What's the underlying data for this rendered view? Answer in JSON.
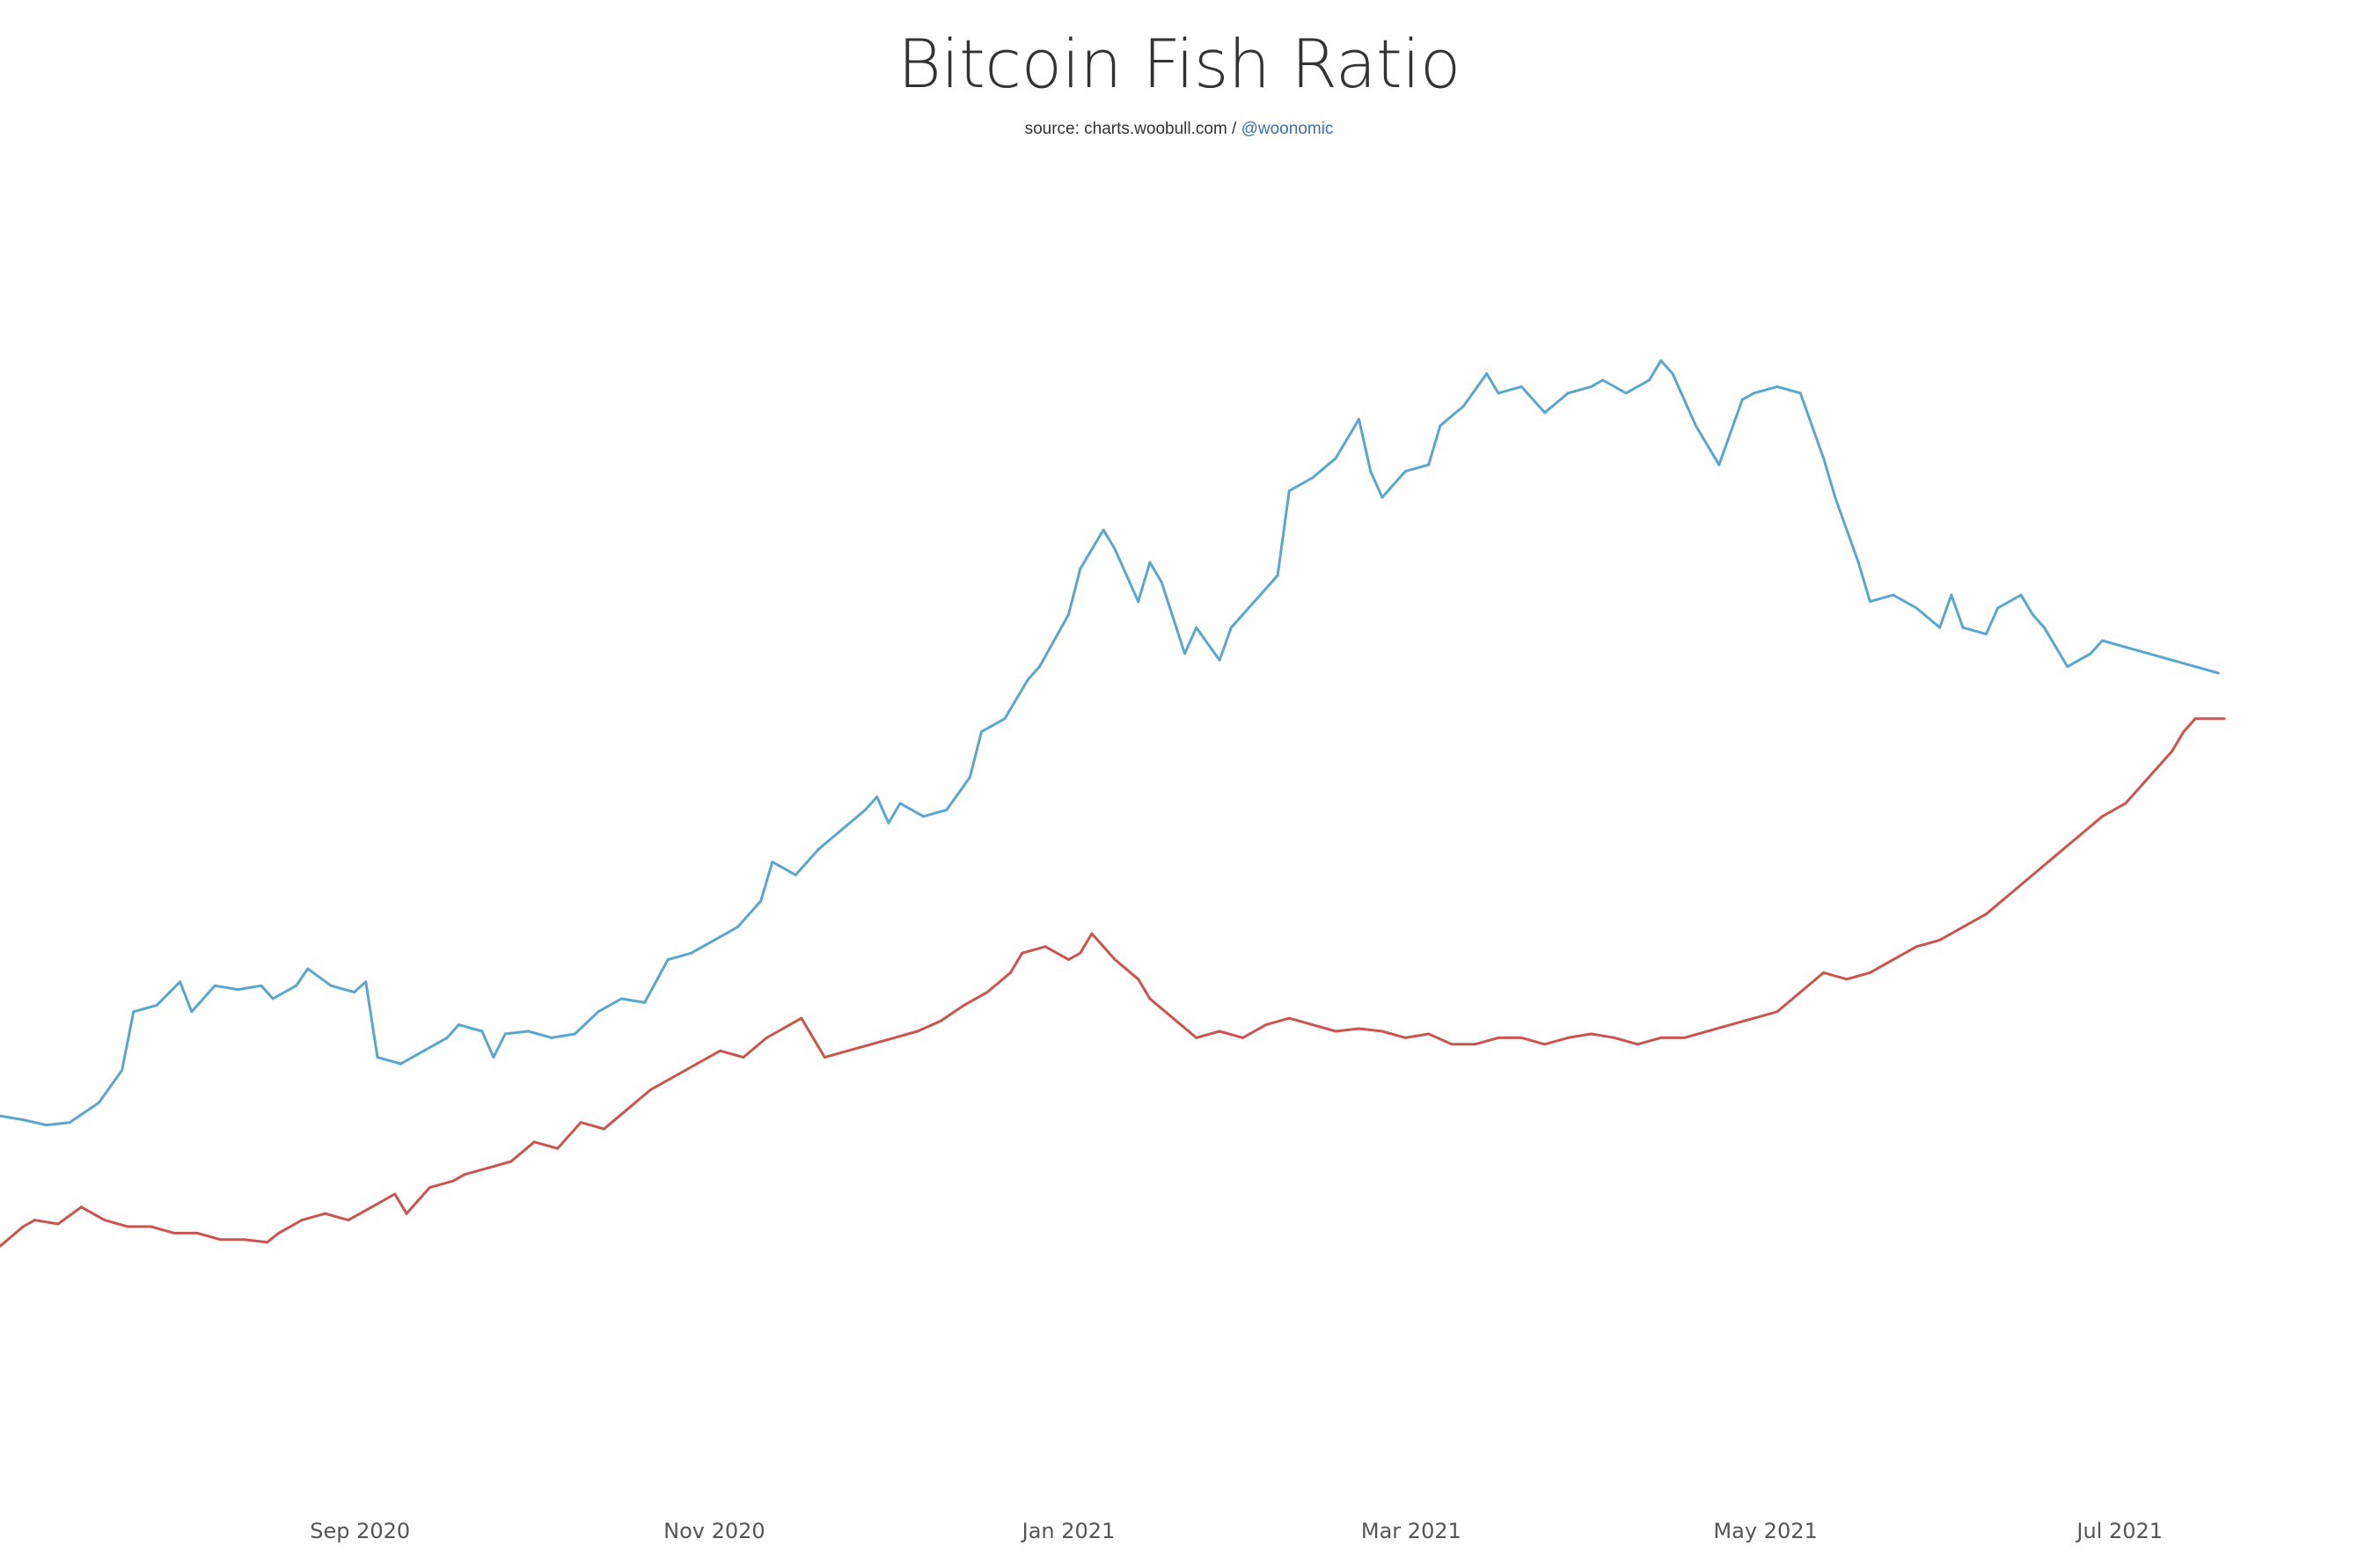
{
  "chart_data": {
    "type": "line",
    "title": "Bitcoin Fish Ratio",
    "subtitle": {
      "source_text": "source: charts.woobull.com / ",
      "handle": "@woonomic"
    },
    "x_axis": {
      "type": "date",
      "range": [
        "2020-07-01",
        "2021-07-19"
      ],
      "tick_labels": [
        {
          "label": "Sep 2020",
          "date": "2020-09-01"
        },
        {
          "label": "Nov 2020",
          "date": "2020-11-01"
        },
        {
          "label": "Jan 2021",
          "date": "2021-01-01"
        },
        {
          "label": "Mar 2021",
          "date": "2021-03-01"
        },
        {
          "label": "May 2021",
          "date": "2021-05-01"
        },
        {
          "label": "Jul 2021",
          "date": "2021-07-01"
        }
      ]
    },
    "y_axis": {
      "visible": false,
      "range": [
        0,
        100
      ]
    },
    "grid": false,
    "legend": "none",
    "series": [
      {
        "color": "#5aa6cc",
        "points": [
          [
            "2020-07-01",
            28.5
          ],
          [
            "2020-07-05",
            28.2
          ],
          [
            "2020-07-09",
            27.8
          ],
          [
            "2020-07-13",
            28.0
          ],
          [
            "2020-07-18",
            29.5
          ],
          [
            "2020-07-22",
            32.0
          ],
          [
            "2020-07-24",
            36.5
          ],
          [
            "2020-07-28",
            37.0
          ],
          [
            "2020-08-01",
            38.8
          ],
          [
            "2020-08-03",
            36.5
          ],
          [
            "2020-08-07",
            38.5
          ],
          [
            "2020-08-11",
            38.2
          ],
          [
            "2020-08-15",
            38.5
          ],
          [
            "2020-08-17",
            37.5
          ],
          [
            "2020-08-21",
            38.5
          ],
          [
            "2020-08-23",
            39.8
          ],
          [
            "2020-08-27",
            38.5
          ],
          [
            "2020-08-31",
            38.0
          ],
          [
            "2020-09-02",
            38.8
          ],
          [
            "2020-09-04",
            33.0
          ],
          [
            "2020-09-08",
            32.5
          ],
          [
            "2020-09-12",
            33.5
          ],
          [
            "2020-09-16",
            34.5
          ],
          [
            "2020-09-18",
            35.5
          ],
          [
            "2020-09-22",
            35.0
          ],
          [
            "2020-09-24",
            33.0
          ],
          [
            "2020-09-26",
            34.8
          ],
          [
            "2020-09-30",
            35.0
          ],
          [
            "2020-10-04",
            34.5
          ],
          [
            "2020-10-08",
            34.8
          ],
          [
            "2020-10-12",
            36.5
          ],
          [
            "2020-10-16",
            37.5
          ],
          [
            "2020-10-20",
            37.2
          ],
          [
            "2020-10-24",
            40.5
          ],
          [
            "2020-10-28",
            41.0
          ],
          [
            "2020-11-01",
            42.0
          ],
          [
            "2020-11-05",
            43.0
          ],
          [
            "2020-11-09",
            45.0
          ],
          [
            "2020-11-11",
            48.0
          ],
          [
            "2020-11-15",
            47.0
          ],
          [
            "2020-11-19",
            49.0
          ],
          [
            "2020-11-23",
            50.5
          ],
          [
            "2020-11-27",
            52.0
          ],
          [
            "2020-11-29",
            53.0
          ],
          [
            "2020-12-01",
            51.0
          ],
          [
            "2020-12-03",
            52.5
          ],
          [
            "2020-12-07",
            51.5
          ],
          [
            "2020-12-11",
            52.0
          ],
          [
            "2020-12-15",
            54.5
          ],
          [
            "2020-12-17",
            58.0
          ],
          [
            "2020-12-21",
            59.0
          ],
          [
            "2020-12-25",
            62.0
          ],
          [
            "2020-12-27",
            63.0
          ],
          [
            "2021-01-01",
            67.0
          ],
          [
            "2021-01-03",
            70.5
          ],
          [
            "2021-01-07",
            73.5
          ],
          [
            "2021-01-09",
            72.0
          ],
          [
            "2021-01-13",
            68.0
          ],
          [
            "2021-01-15",
            71.0
          ],
          [
            "2021-01-17",
            69.5
          ],
          [
            "2021-01-21",
            64.0
          ],
          [
            "2021-01-23",
            66.0
          ],
          [
            "2021-01-27",
            63.5
          ],
          [
            "2021-01-29",
            66.0
          ],
          [
            "2021-02-02",
            68.0
          ],
          [
            "2021-02-06",
            70.0
          ],
          [
            "2021-02-08",
            76.5
          ],
          [
            "2021-02-12",
            77.5
          ],
          [
            "2021-02-16",
            79.0
          ],
          [
            "2021-02-20",
            82.0
          ],
          [
            "2021-02-22",
            78.0
          ],
          [
            "2021-02-24",
            76.0
          ],
          [
            "2021-02-28",
            78.0
          ],
          [
            "2021-03-04",
            78.5
          ],
          [
            "2021-03-06",
            81.5
          ],
          [
            "2021-03-10",
            83.0
          ],
          [
            "2021-03-14",
            85.5
          ],
          [
            "2021-03-16",
            84.0
          ],
          [
            "2021-03-20",
            84.5
          ],
          [
            "2021-03-24",
            82.5
          ],
          [
            "2021-03-28",
            84.0
          ],
          [
            "2021-04-01",
            84.5
          ],
          [
            "2021-04-03",
            85.0
          ],
          [
            "2021-04-07",
            84.0
          ],
          [
            "2021-04-11",
            85.0
          ],
          [
            "2021-04-13",
            86.5
          ],
          [
            "2021-04-15",
            85.5
          ],
          [
            "2021-04-19",
            81.5
          ],
          [
            "2021-04-23",
            78.5
          ],
          [
            "2021-04-27",
            83.5
          ],
          [
            "2021-04-29",
            84.0
          ],
          [
            "2021-05-03",
            84.5
          ],
          [
            "2021-05-07",
            84.0
          ],
          [
            "2021-05-11",
            79.0
          ],
          [
            "2021-05-13",
            76.0
          ],
          [
            "2021-05-17",
            71.0
          ],
          [
            "2021-05-19",
            68.0
          ],
          [
            "2021-05-23",
            68.5
          ],
          [
            "2021-05-27",
            67.5
          ],
          [
            "2021-05-31",
            66.0
          ],
          [
            "2021-06-02",
            68.5
          ],
          [
            "2021-06-04",
            66.0
          ],
          [
            "2021-06-08",
            65.5
          ],
          [
            "2021-06-10",
            67.5
          ],
          [
            "2021-06-14",
            68.5
          ],
          [
            "2021-06-16",
            67.0
          ],
          [
            "2021-06-18",
            66.0
          ],
          [
            "2021-06-22",
            63.0
          ],
          [
            "2021-06-26",
            64.0
          ],
          [
            "2021-06-28",
            65.0
          ],
          [
            "2021-07-02",
            64.5
          ],
          [
            "2021-07-06",
            64.0
          ],
          [
            "2021-07-10",
            63.5
          ],
          [
            "2021-07-14",
            63.0
          ],
          [
            "2021-07-18",
            62.5
          ]
        ]
      },
      {
        "color": "#c9554e",
        "points": [
          [
            "2020-07-01",
            18.5
          ],
          [
            "2020-07-05",
            20.0
          ],
          [
            "2020-07-07",
            20.5
          ],
          [
            "2020-07-11",
            20.2
          ],
          [
            "2020-07-15",
            21.5
          ],
          [
            "2020-07-19",
            20.5
          ],
          [
            "2020-07-23",
            20.0
          ],
          [
            "2020-07-27",
            20.0
          ],
          [
            "2020-07-31",
            19.5
          ],
          [
            "2020-08-04",
            19.5
          ],
          [
            "2020-08-08",
            19.0
          ],
          [
            "2020-08-12",
            19.0
          ],
          [
            "2020-08-16",
            18.8
          ],
          [
            "2020-08-18",
            19.5
          ],
          [
            "2020-08-22",
            20.5
          ],
          [
            "2020-08-26",
            21.0
          ],
          [
            "2020-08-30",
            20.5
          ],
          [
            "2020-09-03",
            21.5
          ],
          [
            "2020-09-07",
            22.5
          ],
          [
            "2020-09-09",
            21.0
          ],
          [
            "2020-09-13",
            23.0
          ],
          [
            "2020-09-17",
            23.5
          ],
          [
            "2020-09-19",
            24.0
          ],
          [
            "2020-09-23",
            24.5
          ],
          [
            "2020-09-27",
            25.0
          ],
          [
            "2020-10-01",
            26.5
          ],
          [
            "2020-10-05",
            26.0
          ],
          [
            "2020-10-09",
            28.0
          ],
          [
            "2020-10-13",
            27.5
          ],
          [
            "2020-10-17",
            29.0
          ],
          [
            "2020-10-21",
            30.5
          ],
          [
            "2020-10-25",
            31.5
          ],
          [
            "2020-10-29",
            32.5
          ],
          [
            "2020-11-02",
            33.5
          ],
          [
            "2020-11-06",
            33.0
          ],
          [
            "2020-11-10",
            34.5
          ],
          [
            "2020-11-14",
            35.5
          ],
          [
            "2020-11-16",
            36.0
          ],
          [
            "2020-11-20",
            33.0
          ],
          [
            "2020-11-24",
            33.5
          ],
          [
            "2020-11-28",
            34.0
          ],
          [
            "2020-12-02",
            34.5
          ],
          [
            "2020-12-06",
            35.0
          ],
          [
            "2020-12-10",
            35.8
          ],
          [
            "2020-12-14",
            37.0
          ],
          [
            "2020-12-18",
            38.0
          ],
          [
            "2020-12-22",
            39.5
          ],
          [
            "2020-12-24",
            41.0
          ],
          [
            "2020-12-28",
            41.5
          ],
          [
            "2021-01-01",
            40.5
          ],
          [
            "2021-01-03",
            41.0
          ],
          [
            "2021-01-05",
            42.5
          ],
          [
            "2021-01-07",
            41.5
          ],
          [
            "2021-01-09",
            40.5
          ],
          [
            "2021-01-13",
            39.0
          ],
          [
            "2021-01-15",
            37.5
          ],
          [
            "2021-01-19",
            36.0
          ],
          [
            "2021-01-23",
            34.5
          ],
          [
            "2021-01-27",
            35.0
          ],
          [
            "2021-01-31",
            34.5
          ],
          [
            "2021-02-04",
            35.5
          ],
          [
            "2021-02-08",
            36.0
          ],
          [
            "2021-02-12",
            35.5
          ],
          [
            "2021-02-16",
            35.0
          ],
          [
            "2021-02-20",
            35.2
          ],
          [
            "2021-02-24",
            35.0
          ],
          [
            "2021-02-28",
            34.5
          ],
          [
            "2021-03-04",
            34.8
          ],
          [
            "2021-03-08",
            34.0
          ],
          [
            "2021-03-12",
            34.0
          ],
          [
            "2021-03-16",
            34.5
          ],
          [
            "2021-03-20",
            34.5
          ],
          [
            "2021-03-24",
            34.0
          ],
          [
            "2021-03-28",
            34.5
          ],
          [
            "2021-04-01",
            34.8
          ],
          [
            "2021-04-05",
            34.5
          ],
          [
            "2021-04-09",
            34.0
          ],
          [
            "2021-04-13",
            34.5
          ],
          [
            "2021-04-17",
            34.5
          ],
          [
            "2021-04-21",
            35.0
          ],
          [
            "2021-04-25",
            35.5
          ],
          [
            "2021-04-29",
            36.0
          ],
          [
            "2021-05-03",
            36.5
          ],
          [
            "2021-05-07",
            38.0
          ],
          [
            "2021-05-11",
            39.5
          ],
          [
            "2021-05-15",
            39.0
          ],
          [
            "2021-05-19",
            39.5
          ],
          [
            "2021-05-23",
            40.5
          ],
          [
            "2021-05-27",
            41.5
          ],
          [
            "2021-05-31",
            42.0
          ],
          [
            "2021-06-04",
            43.0
          ],
          [
            "2021-06-08",
            44.0
          ],
          [
            "2021-06-12",
            45.5
          ],
          [
            "2021-06-16",
            47.0
          ],
          [
            "2021-06-20",
            48.5
          ],
          [
            "2021-06-24",
            50.0
          ],
          [
            "2021-06-28",
            51.5
          ],
          [
            "2021-07-02",
            52.5
          ],
          [
            "2021-07-06",
            54.5
          ],
          [
            "2021-07-10",
            56.5
          ],
          [
            "2021-07-12",
            58.0
          ],
          [
            "2021-07-14",
            59.0
          ],
          [
            "2021-07-16",
            59.0
          ],
          [
            "2021-07-19",
            59.0
          ]
        ]
      }
    ]
  }
}
